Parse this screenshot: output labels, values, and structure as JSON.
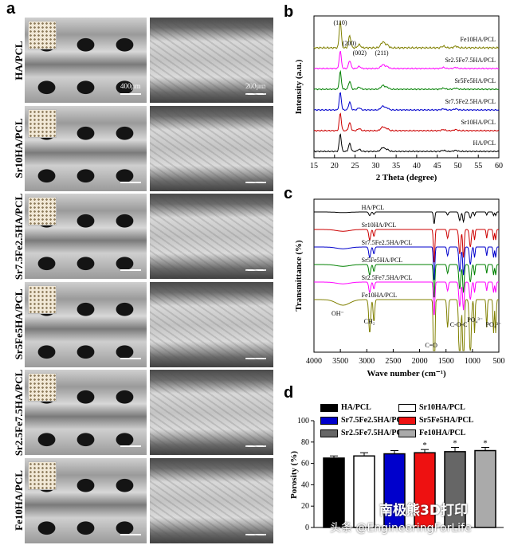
{
  "panels": {
    "a": "a",
    "b": "b",
    "c": "c",
    "d": "d"
  },
  "panel_a": {
    "rows": [
      {
        "label": "HA/PCL"
      },
      {
        "label": "Sr10HA/PCL"
      },
      {
        "label": "Sr7.5Fe2.5HA/PCL"
      },
      {
        "label": "Sr5Fe5HA/PCL"
      },
      {
        "label": "Sr2.5Fe7.5HA/PCL"
      },
      {
        "label": "Fe10HA/PCL"
      }
    ],
    "scale_left": "400μm",
    "scale_right": "200μm"
  },
  "chart_data": [
    {
      "type": "line",
      "panel": "b",
      "xlabel": "2 Theta (degree)",
      "ylabel": "Intensity (a.u.)",
      "xlim": [
        15,
        60
      ],
      "xticks": [
        "15",
        "20",
        "25",
        "30",
        "35",
        "40",
        "45",
        "50",
        "55",
        "60"
      ],
      "peak_labels": [
        "(110)",
        "(200)",
        "(002)",
        "(211)"
      ],
      "series": [
        {
          "name": "Fe10HA/PCL",
          "color": "#808000"
        },
        {
          "name": "Sr2.5Fe7.5HA/PCL",
          "color": "#ff00ff"
        },
        {
          "name": "Sr5Fe5HA/PCL",
          "color": "#008000"
        },
        {
          "name": "Sr7.5Fe2.5HA/PCL",
          "color": "#0000cc"
        },
        {
          "name": "Sr10HA/PCL",
          "color": "#cc0000"
        },
        {
          "name": "HA/PCL",
          "color": "#000000"
        }
      ]
    },
    {
      "type": "line",
      "panel": "c",
      "xlabel": "Wave number (cm⁻¹)",
      "ylabel": "Transmittance (%)",
      "xlim": [
        4000,
        500
      ],
      "xticks": [
        "4000",
        "3500",
        "3000",
        "2500",
        "2000",
        "1500",
        "1000",
        "500"
      ],
      "band_labels": [
        "OH⁻",
        "CH₂",
        "C=O",
        "C-O-C",
        "PO₄³⁻",
        "PO₄³⁻"
      ],
      "series": [
        {
          "name": "HA/PCL",
          "color": "#000000"
        },
        {
          "name": "Sr10HA/PCL",
          "color": "#cc0000"
        },
        {
          "name": "Sr7.5Fe2.5HA/PCL",
          "color": "#0000cc"
        },
        {
          "name": "Sr5Fe5HA/PCL",
          "color": "#008000"
        },
        {
          "name": "Sr2.5Fe7.5HA/PCL",
          "color": "#ff00ff"
        },
        {
          "name": "Fe10HA/PCL",
          "color": "#808000"
        }
      ]
    },
    {
      "type": "bar",
      "panel": "d",
      "ylabel": "Porosity (%)",
      "ylim": [
        0,
        100
      ],
      "yticks": [
        "0",
        "20",
        "40",
        "60",
        "80",
        "100"
      ],
      "categories": [
        "HA/PCL",
        "Sr10HA/PCL",
        "Sr7.5Fe2.5HA/PCL",
        "Sr5Fe5HA/PCL",
        "Sr2.5Fe7.5HA/PCL",
        "Fe10HA/PCL"
      ],
      "values": [
        65,
        67,
        69,
        70,
        71,
        72
      ],
      "errors": [
        2,
        3,
        3,
        3,
        4,
        3
      ],
      "significance": [
        "",
        "",
        "",
        "*",
        "*",
        "*"
      ],
      "colors": [
        "#000000",
        "#ffffff",
        "#0000cc",
        "#ee1111",
        "#666666",
        "#aaaaaa"
      ]
    }
  ],
  "watermark": {
    "line1": "南极熊3D打印",
    "line2": "头条 @EngineeringForLife"
  }
}
